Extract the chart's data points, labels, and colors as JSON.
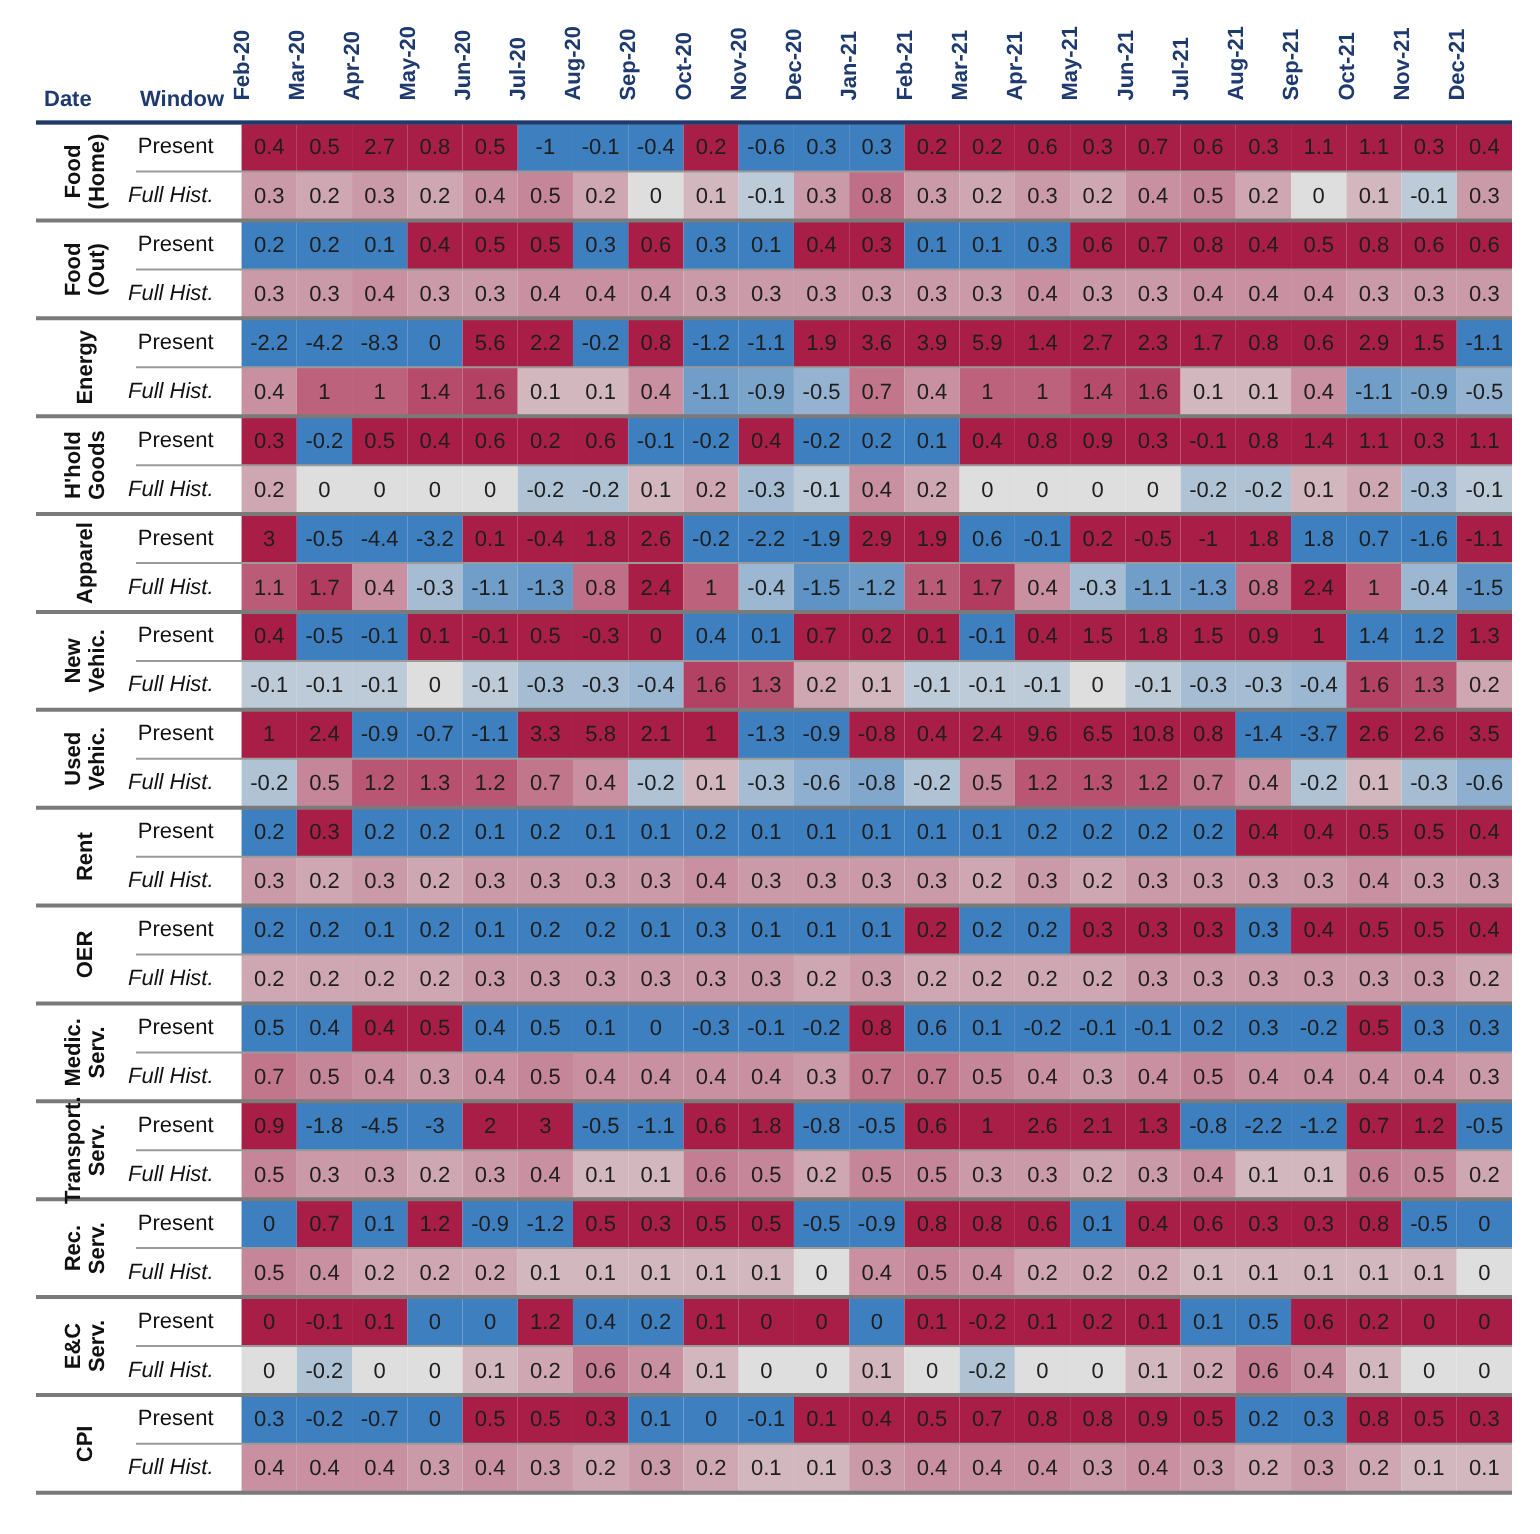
{
  "chart_data": {
    "type": "heatmap",
    "xlabel": "Date",
    "ylabel": "Window",
    "data_labels": true,
    "categories": [
      "Feb-20",
      "Mar-20",
      "Apr-20",
      "May-20",
      "Jun-20",
      "Jul-20",
      "Aug-20",
      "Sep-20",
      "Oct-20",
      "Nov-20",
      "Dec-20",
      "Jan-21",
      "Feb-21",
      "Mar-21",
      "Apr-21",
      "May-21",
      "Jun-21",
      "Jul-21",
      "Aug-21",
      "Sep-21",
      "Oct-21",
      "Nov-21",
      "Dec-21"
    ],
    "y_categories": [
      "Present",
      "Full Hist.",
      "Present",
      "Full Hist.",
      "Present",
      "Full Hist.",
      "Present",
      "Full Hist.",
      "Present",
      "Full Hist.",
      "Present",
      "Full Hist.",
      "Present",
      "Full Hist.",
      "Present",
      "Full Hist.",
      "Present",
      "Full Hist.",
      "Present",
      "Full Hist.",
      "Present",
      "Full Hist.",
      "Present",
      "Full Hist.",
      "Present",
      "Full Hist.",
      "Present",
      "Full Hist."
    ],
    "y2_categories": [
      "Food (Home)",
      null,
      "Food (Out)",
      null,
      "Energy",
      null,
      "H'hold Goods",
      null,
      "Apparel",
      null,
      "New Vehic.",
      null,
      "Used Vehic.",
      null,
      "Rent",
      null,
      "OER",
      null,
      "Medic. Serv.",
      null,
      "Transport. Serv.",
      null,
      "Rec. Serv.",
      null,
      "E&C Serv.",
      null,
      "CPI",
      null
    ],
    "cells": [
      [
        0.4,
        0.5,
        2.7,
        0.8,
        0.5,
        -1,
        -0.1,
        -0.4,
        0.2,
        -0.6,
        0.3,
        0.3,
        0.2,
        0.2,
        0.6,
        0.3,
        0.7,
        0.6,
        0.3,
        1.1,
        1.1,
        0.3,
        0.4
      ],
      [
        0.3,
        0.2,
        0.3,
        0.2,
        0.4,
        0.5,
        0.2,
        0,
        0.1,
        -0.1,
        0.3,
        0.8,
        0.3,
        0.2,
        0.3,
        0.2,
        0.4,
        0.5,
        0.2,
        0,
        0.1,
        -0.1,
        0.3
      ],
      [
        0.2,
        0.2,
        0.1,
        0.4,
        0.5,
        0.5,
        0.3,
        0.6,
        0.3,
        0.1,
        0.4,
        0.3,
        0.1,
        0.1,
        0.3,
        0.6,
        0.7,
        0.8,
        0.4,
        0.5,
        0.8,
        0.6,
        0.6
      ],
      [
        0.3,
        0.3,
        0.4,
        0.3,
        0.3,
        0.4,
        0.4,
        0.4,
        0.3,
        0.3,
        0.3,
        0.3,
        0.3,
        0.3,
        0.4,
        0.3,
        0.3,
        0.4,
        0.4,
        0.4,
        0.3,
        0.3,
        0.3
      ],
      [
        -2.2,
        -4.2,
        -8.3,
        0,
        5.6,
        2.2,
        -0.2,
        0.8,
        -1.2,
        -1.1,
        1.9,
        3.6,
        3.9,
        5.9,
        1.4,
        2.7,
        2.3,
        1.7,
        0.8,
        0.6,
        2.9,
        1.5,
        -1.1
      ],
      [
        0.4,
        1,
        1,
        1.4,
        1.6,
        0.1,
        0.1,
        0.4,
        -1.1,
        -0.9,
        -0.5,
        0.7,
        0.4,
        1,
        1,
        1.4,
        1.6,
        0.1,
        0.1,
        0.4,
        -1.1,
        -0.9,
        -0.5
      ],
      [
        0.3,
        -0.2,
        0.5,
        0.4,
        0.6,
        0.2,
        0.6,
        -0.1,
        -0.2,
        0.4,
        -0.2,
        0.2,
        0.1,
        0.4,
        0.8,
        0.9,
        0.3,
        -0.1,
        0.8,
        1.4,
        1.1,
        0.3,
        1.1
      ],
      [
        0.2,
        0,
        0,
        0,
        0,
        -0.2,
        -0.2,
        0.1,
        0.2,
        -0.3,
        -0.1,
        0.4,
        0.2,
        0,
        0,
        0,
        0,
        -0.2,
        -0.2,
        0.1,
        0.2,
        -0.3,
        -0.1
      ],
      [
        3,
        -0.5,
        -4.4,
        -3.2,
        0.1,
        -0.4,
        1.8,
        2.6,
        -0.2,
        -2.2,
        -1.9,
        2.9,
        1.9,
        0.6,
        -0.1,
        0.2,
        -0.5,
        -1,
        1.8,
        1.8,
        0.7,
        -1.6,
        -1.1
      ],
      [
        1.1,
        1.7,
        0.4,
        -0.3,
        -1.1,
        -1.3,
        0.8,
        2.4,
        1,
        -0.4,
        -1.5,
        -1.2,
        1.1,
        1.7,
        0.4,
        -0.3,
        -1.1,
        -1.3,
        0.8,
        2.4,
        1,
        -0.4,
        -1.5
      ],
      [
        0.4,
        -0.5,
        -0.1,
        0.1,
        -0.1,
        0.5,
        -0.3,
        0,
        0.4,
        0.1,
        0.7,
        0.2,
        0.1,
        -0.1,
        0.4,
        1.5,
        1.8,
        1.5,
        0.9,
        1,
        1.4,
        1.2,
        1.3
      ],
      [
        -0.1,
        -0.1,
        -0.1,
        0,
        -0.1,
        -0.3,
        -0.3,
        -0.4,
        1.6,
        1.3,
        0.2,
        0.1,
        -0.1,
        -0.1,
        -0.1,
        0,
        -0.1,
        -0.3,
        -0.3,
        -0.4,
        1.6,
        1.3,
        0.2
      ],
      [
        1,
        2.4,
        -0.9,
        -0.7,
        -1.1,
        3.3,
        5.8,
        2.1,
        1,
        -1.3,
        -0.9,
        -0.8,
        0.4,
        2.4,
        9.6,
        6.5,
        10.8,
        0.8,
        -1.4,
        -3.7,
        2.6,
        2.6,
        3.5
      ],
      [
        -0.2,
        0.5,
        1.2,
        1.3,
        1.2,
        0.7,
        0.4,
        -0.2,
        0.1,
        -0.3,
        -0.6,
        -0.8,
        -0.2,
        0.5,
        1.2,
        1.3,
        1.2,
        0.7,
        0.4,
        -0.2,
        0.1,
        -0.3,
        -0.6
      ],
      [
        0.2,
        0.3,
        0.2,
        0.2,
        0.1,
        0.2,
        0.1,
        0.1,
        0.2,
        0.1,
        0.1,
        0.1,
        0.1,
        0.1,
        0.2,
        0.2,
        0.2,
        0.2,
        0.4,
        0.4,
        0.5,
        0.5,
        0.4
      ],
      [
        0.3,
        0.2,
        0.3,
        0.2,
        0.3,
        0.3,
        0.3,
        0.3,
        0.4,
        0.3,
        0.3,
        0.3,
        0.3,
        0.2,
        0.3,
        0.2,
        0.3,
        0.3,
        0.3,
        0.3,
        0.4,
        0.3,
        0.3
      ],
      [
        0.2,
        0.2,
        0.1,
        0.2,
        0.1,
        0.2,
        0.2,
        0.1,
        0.3,
        0.1,
        0.1,
        0.1,
        0.2,
        0.2,
        0.2,
        0.3,
        0.3,
        0.3,
        0.3,
        0.4,
        0.5,
        0.5,
        0.4
      ],
      [
        0.2,
        0.2,
        0.2,
        0.2,
        0.3,
        0.3,
        0.3,
        0.3,
        0.3,
        0.3,
        0.2,
        0.3,
        0.2,
        0.2,
        0.2,
        0.2,
        0.3,
        0.3,
        0.3,
        0.3,
        0.3,
        0.3,
        0.2
      ],
      [
        0.5,
        0.4,
        0.4,
        0.5,
        0.4,
        0.5,
        0.1,
        0,
        -0.3,
        -0.1,
        -0.2,
        0.8,
        0.6,
        0.1,
        -0.2,
        -0.1,
        -0.1,
        0.2,
        0.3,
        -0.2,
        0.5,
        0.3,
        0.3
      ],
      [
        0.7,
        0.5,
        0.4,
        0.3,
        0.4,
        0.5,
        0.4,
        0.4,
        0.4,
        0.4,
        0.3,
        0.7,
        0.7,
        0.5,
        0.4,
        0.3,
        0.4,
        0.5,
        0.4,
        0.4,
        0.4,
        0.4,
        0.3
      ],
      [
        0.9,
        -1.8,
        -4.5,
        -3,
        2,
        3,
        -0.5,
        -1.1,
        0.6,
        1.8,
        -0.8,
        -0.5,
        0.6,
        1,
        2.6,
        2.1,
        1.3,
        -0.8,
        -2.2,
        -1.2,
        0.7,
        1.2,
        -0.5
      ],
      [
        0.5,
        0.3,
        0.3,
        0.2,
        0.3,
        0.4,
        0.1,
        0.1,
        0.6,
        0.5,
        0.2,
        0.5,
        0.5,
        0.3,
        0.3,
        0.2,
        0.3,
        0.4,
        0.1,
        0.1,
        0.6,
        0.5,
        0.2
      ],
      [
        0,
        0.7,
        0.1,
        1.2,
        -0.9,
        -1.2,
        0.5,
        0.3,
        0.5,
        0.5,
        -0.5,
        -0.9,
        0.8,
        0.8,
        0.6,
        0.1,
        0.4,
        0.6,
        0.3,
        0.3,
        0.8,
        -0.5,
        0
      ],
      [
        0.5,
        0.4,
        0.2,
        0.2,
        0.2,
        0.1,
        0.1,
        0.1,
        0.1,
        0.1,
        0,
        0.4,
        0.5,
        0.4,
        0.2,
        0.2,
        0.2,
        0.1,
        0.1,
        0.1,
        0.1,
        0.1,
        0
      ],
      [
        0,
        -0.1,
        0.1,
        0,
        0,
        1.2,
        0.4,
        0.2,
        0.1,
        0,
        0,
        0,
        0.1,
        -0.2,
        0.1,
        0.2,
        0.1,
        0.1,
        0.5,
        0.6,
        0.2,
        0,
        0
      ],
      [
        0,
        -0.2,
        0,
        0,
        0.1,
        0.2,
        0.6,
        0.4,
        0.1,
        0,
        0,
        0.1,
        0,
        -0.2,
        0,
        0,
        0.1,
        0.2,
        0.6,
        0.4,
        0.1,
        0,
        0
      ],
      [
        0.3,
        -0.2,
        -0.7,
        0,
        0.5,
        0.5,
        0.3,
        0.1,
        0,
        -0.1,
        0.1,
        0.4,
        0.5,
        0.7,
        0.8,
        0.8,
        0.9,
        0.5,
        0.2,
        0.3,
        0.8,
        0.5,
        0.3
      ],
      [
        0.4,
        0.4,
        0.4,
        0.3,
        0.4,
        0.3,
        0.2,
        0.3,
        0.2,
        0.1,
        0.1,
        0.3,
        0.4,
        0.4,
        0.4,
        0.3,
        0.4,
        0.3,
        0.2,
        0.3,
        0.2,
        0.1,
        0.1
      ]
    ],
    "colors": [
      [
        "#a91e47",
        "#a91e47",
        "#a91e47",
        "#a91e47",
        "#a91e47",
        "#3d7fbf",
        "#3d7fbf",
        "#3d7fbf",
        "#a91e47",
        "#3d7fbf",
        "#3d7fbf",
        "#3d7fbf",
        "#a91e47",
        "#a91e47",
        "#a91e47",
        "#a91e47",
        "#a91e47",
        "#a91e47",
        "#a91e47",
        "#a91e47",
        "#a91e47",
        "#a91e47",
        "#a91e47"
      ],
      null,
      [
        "#3d7fbf",
        "#3d7fbf",
        "#3d7fbf",
        "#a91e47",
        "#a91e47",
        "#a91e47",
        "#3d7fbf",
        "#a91e47",
        "#3d7fbf",
        "#3d7fbf",
        "#a91e47",
        "#a91e47",
        "#3d7fbf",
        "#3d7fbf",
        "#3d7fbf",
        "#a91e47",
        "#a91e47",
        "#a91e47",
        "#a91e47",
        "#a91e47",
        "#a91e47",
        "#a91e47",
        "#a91e47"
      ],
      null,
      [
        "#3d7fbf",
        "#3d7fbf",
        "#3d7fbf",
        "#3d7fbf",
        "#a91e47",
        "#a91e47",
        "#3d7fbf",
        "#a91e47",
        "#3d7fbf",
        "#3d7fbf",
        "#a91e47",
        "#a91e47",
        "#a91e47",
        "#a91e47",
        "#a91e47",
        "#a91e47",
        "#a91e47",
        "#a91e47",
        "#a91e47",
        "#a91e47",
        "#a91e47",
        "#a91e47",
        "#3d7fbf"
      ],
      null,
      [
        "#a91e47",
        "#3d7fbf",
        "#a91e47",
        "#a91e47",
        "#a91e47",
        "#a91e47",
        "#a91e47",
        "#3d7fbf",
        "#3d7fbf",
        "#a91e47",
        "#3d7fbf",
        "#3d7fbf",
        "#3d7fbf",
        "#a91e47",
        "#a91e47",
        "#a91e47",
        "#a91e47",
        "#a91e47",
        "#a91e47",
        "#a91e47",
        "#a91e47",
        "#a91e47",
        "#a91e47"
      ],
      null,
      [
        "#a91e47",
        "#3d7fbf",
        "#3d7fbf",
        "#3d7fbf",
        "#a91e47",
        "#a91e47",
        "#a91e47",
        "#a91e47",
        "#3d7fbf",
        "#3d7fbf",
        "#3d7fbf",
        "#a91e47",
        "#a91e47",
        "#3d7fbf",
        "#3d7fbf",
        "#a91e47",
        "#a91e47",
        "#a91e47",
        "#a91e47",
        "#3d7fbf",
        "#3d7fbf",
        "#3d7fbf",
        "#a91e47"
      ],
      null,
      [
        "#a91e47",
        "#3d7fbf",
        "#3d7fbf",
        "#a91e47",
        "#a91e47",
        "#a91e47",
        "#a91e47",
        "#a91e47",
        "#3d7fbf",
        "#3d7fbf",
        "#a91e47",
        "#a91e47",
        "#a91e47",
        "#3d7fbf",
        "#a91e47",
        "#a91e47",
        "#a91e47",
        "#a91e47",
        "#a91e47",
        "#a91e47",
        "#3d7fbf",
        "#3d7fbf",
        "#a91e47"
      ],
      null,
      [
        "#a91e47",
        "#a91e47",
        "#3d7fbf",
        "#3d7fbf",
        "#3d7fbf",
        "#a91e47",
        "#a91e47",
        "#a91e47",
        "#a91e47",
        "#3d7fbf",
        "#3d7fbf",
        "#a91e47",
        "#a91e47",
        "#a91e47",
        "#a91e47",
        "#a91e47",
        "#a91e47",
        "#a91e47",
        "#3d7fbf",
        "#3d7fbf",
        "#a91e47",
        "#a91e47",
        "#a91e47"
      ],
      null,
      [
        "#3d7fbf",
        "#a91e47",
        "#3d7fbf",
        "#3d7fbf",
        "#3d7fbf",
        "#3d7fbf",
        "#3d7fbf",
        "#3d7fbf",
        "#3d7fbf",
        "#3d7fbf",
        "#3d7fbf",
        "#3d7fbf",
        "#3d7fbf",
        "#3d7fbf",
        "#3d7fbf",
        "#3d7fbf",
        "#3d7fbf",
        "#3d7fbf",
        "#a91e47",
        "#a91e47",
        "#a91e47",
        "#a91e47",
        "#a91e47"
      ],
      null,
      [
        "#3d7fbf",
        "#3d7fbf",
        "#3d7fbf",
        "#3d7fbf",
        "#3d7fbf",
        "#3d7fbf",
        "#3d7fbf",
        "#3d7fbf",
        "#3d7fbf",
        "#3d7fbf",
        "#3d7fbf",
        "#3d7fbf",
        "#a91e47",
        "#3d7fbf",
        "#3d7fbf",
        "#a91e47",
        "#a91e47",
        "#a91e47",
        "#3d7fbf",
        "#a91e47",
        "#a91e47",
        "#a91e47",
        "#a91e47"
      ],
      null,
      [
        "#3d7fbf",
        "#3d7fbf",
        "#a91e47",
        "#a91e47",
        "#3d7fbf",
        "#3d7fbf",
        "#3d7fbf",
        "#3d7fbf",
        "#3d7fbf",
        "#3d7fbf",
        "#3d7fbf",
        "#a91e47",
        "#3d7fbf",
        "#3d7fbf",
        "#3d7fbf",
        "#3d7fbf",
        "#3d7fbf",
        "#3d7fbf",
        "#3d7fbf",
        "#3d7fbf",
        "#a91e47",
        "#3d7fbf",
        "#3d7fbf"
      ],
      null,
      [
        "#a91e47",
        "#3d7fbf",
        "#3d7fbf",
        "#3d7fbf",
        "#a91e47",
        "#a91e47",
        "#3d7fbf",
        "#3d7fbf",
        "#a91e47",
        "#a91e47",
        "#3d7fbf",
        "#3d7fbf",
        "#a91e47",
        "#a91e47",
        "#a91e47",
        "#a91e47",
        "#a91e47",
        "#3d7fbf",
        "#3d7fbf",
        "#3d7fbf",
        "#a91e47",
        "#a91e47",
        "#3d7fbf"
      ],
      null,
      [
        "#3d7fbf",
        "#a91e47",
        "#3d7fbf",
        "#a91e47",
        "#3d7fbf",
        "#3d7fbf",
        "#a91e47",
        "#a91e47",
        "#a91e47",
        "#a91e47",
        "#3d7fbf",
        "#3d7fbf",
        "#a91e47",
        "#a91e47",
        "#a91e47",
        "#3d7fbf",
        "#a91e47",
        "#a91e47",
        "#a91e47",
        "#a91e47",
        "#a91e47",
        "#3d7fbf",
        "#3d7fbf"
      ],
      null,
      [
        "#a91e47",
        "#a91e47",
        "#a91e47",
        "#3d7fbf",
        "#3d7fbf",
        "#a91e47",
        "#3d7fbf",
        "#3d7fbf",
        "#a91e47",
        "#a91e47",
        "#a91e47",
        "#3d7fbf",
        "#a91e47",
        "#a91e47",
        "#a91e47",
        "#a91e47",
        "#a91e47",
        "#3d7fbf",
        "#3d7fbf",
        "#a91e47",
        "#a91e47",
        "#a91e47",
        "#a91e47"
      ],
      null,
      [
        "#3d7fbf",
        "#3d7fbf",
        "#3d7fbf",
        "#3d7fbf",
        "#a91e47",
        "#a91e47",
        "#a91e47",
        "#3d7fbf",
        "#3d7fbf",
        "#3d7fbf",
        "#a91e47",
        "#a91e47",
        "#a91e47",
        "#a91e47",
        "#a91e47",
        "#a91e47",
        "#a91e47",
        "#a91e47",
        "#3d7fbf",
        "#3d7fbf",
        "#a91e47",
        "#a91e47",
        "#a91e47"
      ],
      null
    ]
  }
}
